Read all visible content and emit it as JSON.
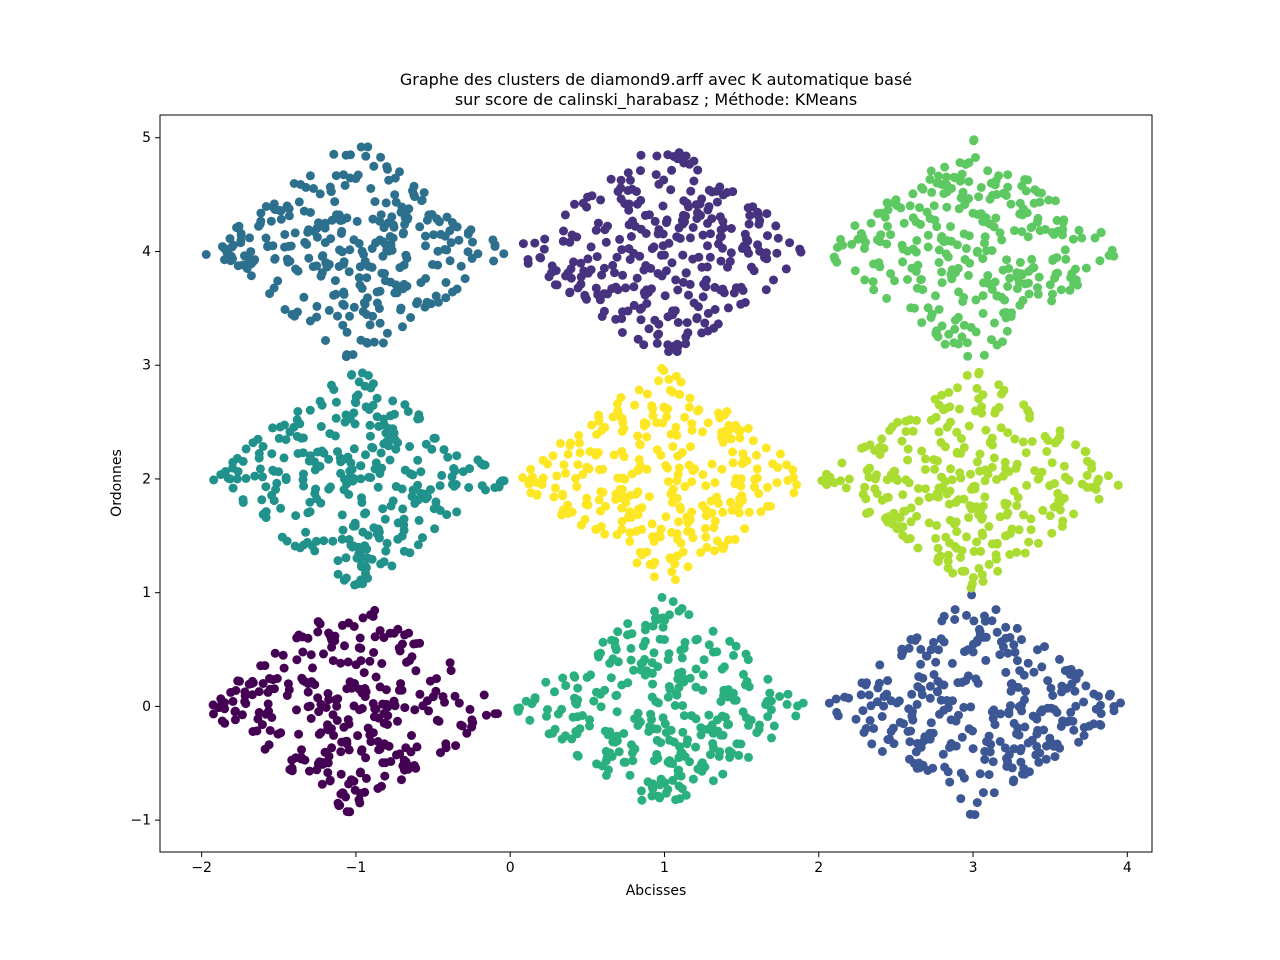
{
  "figure": {
    "background": "#ffffff",
    "title_line1": "Graphe des clusters de diamond9.arff avec K automatique basé",
    "title_line2": "sur score de calinski_harabasz ; Méthode: KMeans",
    "xlabel": "Abcisses",
    "ylabel": "Ordonnes"
  },
  "chart_data": {
    "type": "scatter",
    "title": "Graphe des clusters de diamond9.arff avec K automatique basé sur score de calinski_harabasz ; Méthode: KMeans",
    "xlabel": "Abcisses",
    "ylabel": "Ordonnes",
    "xlim": [
      -2.27,
      4.16
    ],
    "ylim": [
      -1.28,
      5.2
    ],
    "xticks": [
      -2,
      -1,
      0,
      1,
      2,
      3,
      4
    ],
    "yticks": [
      -1,
      0,
      1,
      2,
      3,
      4,
      5
    ],
    "grid": false,
    "legend": null,
    "n_clusters": 9,
    "marker_radius_px": 4.5,
    "point_color_edge": "none",
    "clusters": [
      {
        "name": "cluster-bottom-left",
        "center": [
          -1,
          0
        ],
        "color": "#440154",
        "n_points": 300,
        "shape": "diamond",
        "half_diagonal": 1.0,
        "seed": 11
      },
      {
        "name": "cluster-bottom-middle",
        "center": [
          1,
          0
        ],
        "color": "#2ab07f",
        "n_points": 300,
        "shape": "diamond",
        "half_diagonal": 1.0,
        "seed": 22
      },
      {
        "name": "cluster-bottom-right",
        "center": [
          3,
          0
        ],
        "color": "#3c5794",
        "n_points": 300,
        "shape": "diamond",
        "half_diagonal": 1.0,
        "seed": 33
      },
      {
        "name": "cluster-middle-left",
        "center": [
          -1,
          2
        ],
        "color": "#21918c",
        "n_points": 300,
        "shape": "diamond",
        "half_diagonal": 1.0,
        "seed": 44
      },
      {
        "name": "cluster-middle-middle",
        "center": [
          1,
          2
        ],
        "color": "#fde725",
        "n_points": 300,
        "shape": "diamond",
        "half_diagonal": 1.0,
        "seed": 55
      },
      {
        "name": "cluster-middle-right",
        "center": [
          3,
          2
        ],
        "color": "#aadc32",
        "n_points": 300,
        "shape": "diamond",
        "half_diagonal": 1.0,
        "seed": 66
      },
      {
        "name": "cluster-top-left",
        "center": [
          -1,
          4
        ],
        "color": "#2d708e",
        "n_points": 300,
        "shape": "diamond",
        "half_diagonal": 1.0,
        "seed": 77
      },
      {
        "name": "cluster-top-middle",
        "center": [
          1,
          4
        ],
        "color": "#46327e",
        "n_points": 300,
        "shape": "diamond",
        "half_diagonal": 1.0,
        "seed": 88
      },
      {
        "name": "cluster-top-right",
        "center": [
          3,
          4
        ],
        "color": "#5ec962",
        "n_points": 300,
        "shape": "diamond",
        "half_diagonal": 1.0,
        "seed": 99
      }
    ]
  }
}
